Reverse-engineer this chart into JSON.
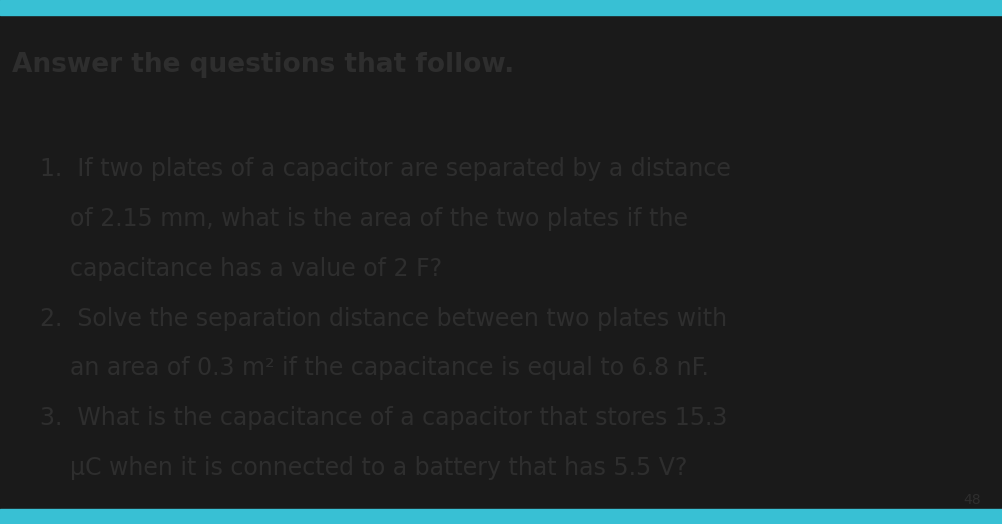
{
  "title": "Answer the questions that follow.",
  "title_fontsize": 19,
  "title_fontweight": "bold",
  "line1": "1.  If two plates of a capacitor are separated by a distance",
  "line2": "    of 2.15 mm, what is the area of the two plates if the",
  "line3": "    capacitance has a value of 2 F?",
  "line4": "2.  Solve the separation distance between two plates with",
  "line5": "    an area of 0.3 m² if the capacitance is equal to 6.8 nF.",
  "line6": "3.  What is the capacitance of a capacitor that stores 15.3",
  "line7": "    μC when it is connected to a battery that has 5.5 V?",
  "body_fontsize": 17,
  "text_color": "#2e2e2e",
  "background_color": "#1a1a1a",
  "card_color": "#e9e4db",
  "page_number": "48",
  "page_num_fontsize": 10,
  "top_bar_color": "#38c0d4",
  "bottom_bar_color": "#38c0d4",
  "top_bar_height": 0.028,
  "bottom_bar_height": 0.028
}
